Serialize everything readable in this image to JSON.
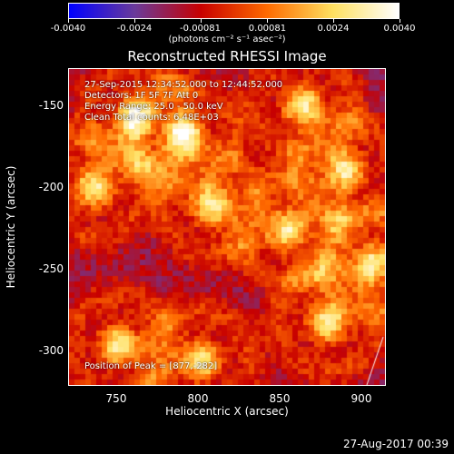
{
  "colorbar": {
    "ticks": [
      "-0.0040",
      "-0.0024",
      "-0.00081",
      "0.00081",
      "0.0024",
      "0.0040"
    ],
    "units": "(photons cm⁻² s⁻¹ asec⁻²)",
    "min": -0.004,
    "max": 0.004
  },
  "title": "Reconstructed RHESSI Image",
  "info": {
    "time_range": "27-Sep-2015 12:34:52.000 to 12:44:52.000",
    "detectors": "Detectors: 1F 5F 7F  Att 0",
    "energy": "Energy Range: 25.0 - 50.0 keV",
    "clean": "Clean    Total counts: 6.48E+03",
    "peak": "Position of Peak = [877,-282]"
  },
  "axes": {
    "xlabel": "Heliocentric X (arcsec)",
    "ylabel": "Heliocentric Y (arcsec)",
    "xticks": [
      "750",
      "800",
      "850",
      "900"
    ],
    "yticks": [
      "-150",
      "-200",
      "-250",
      "-300"
    ]
  },
  "chart_data": {
    "type": "heatmap",
    "title": "Reconstructed RHESSI Image",
    "xlabel": "Heliocentric X (arcsec)",
    "ylabel": "Heliocentric Y (arcsec)",
    "xlim": [
      720,
      912
    ],
    "ylim": [
      -320,
      -128
    ],
    "x_ticks": [
      750,
      800,
      850,
      900
    ],
    "y_ticks": [
      -150,
      -200,
      -250,
      -300
    ],
    "peak_position": [
      877,
      -282
    ],
    "color_range": [
      -0.004,
      0.004
    ],
    "colormap": [
      "#0000ff",
      "#6a3a9a",
      "#c80000",
      "#ff6a00",
      "#ffe060",
      "#ffffff"
    ],
    "sources": [
      {
        "x": 807,
        "y": -211
      },
      {
        "x": 750,
        "y": -296
      },
      {
        "x": 877,
        "y": -282
      },
      {
        "x": 800,
        "y": -305
      },
      {
        "x": 760,
        "y": -157
      },
      {
        "x": 862,
        "y": -150
      },
      {
        "x": 790,
        "y": -168
      },
      {
        "x": 888,
        "y": -190
      },
      {
        "x": 905,
        "y": -246
      },
      {
        "x": 735,
        "y": -200
      },
      {
        "x": 853,
        "y": -226
      }
    ]
  },
  "footer": "27-Aug-2017 00:39"
}
